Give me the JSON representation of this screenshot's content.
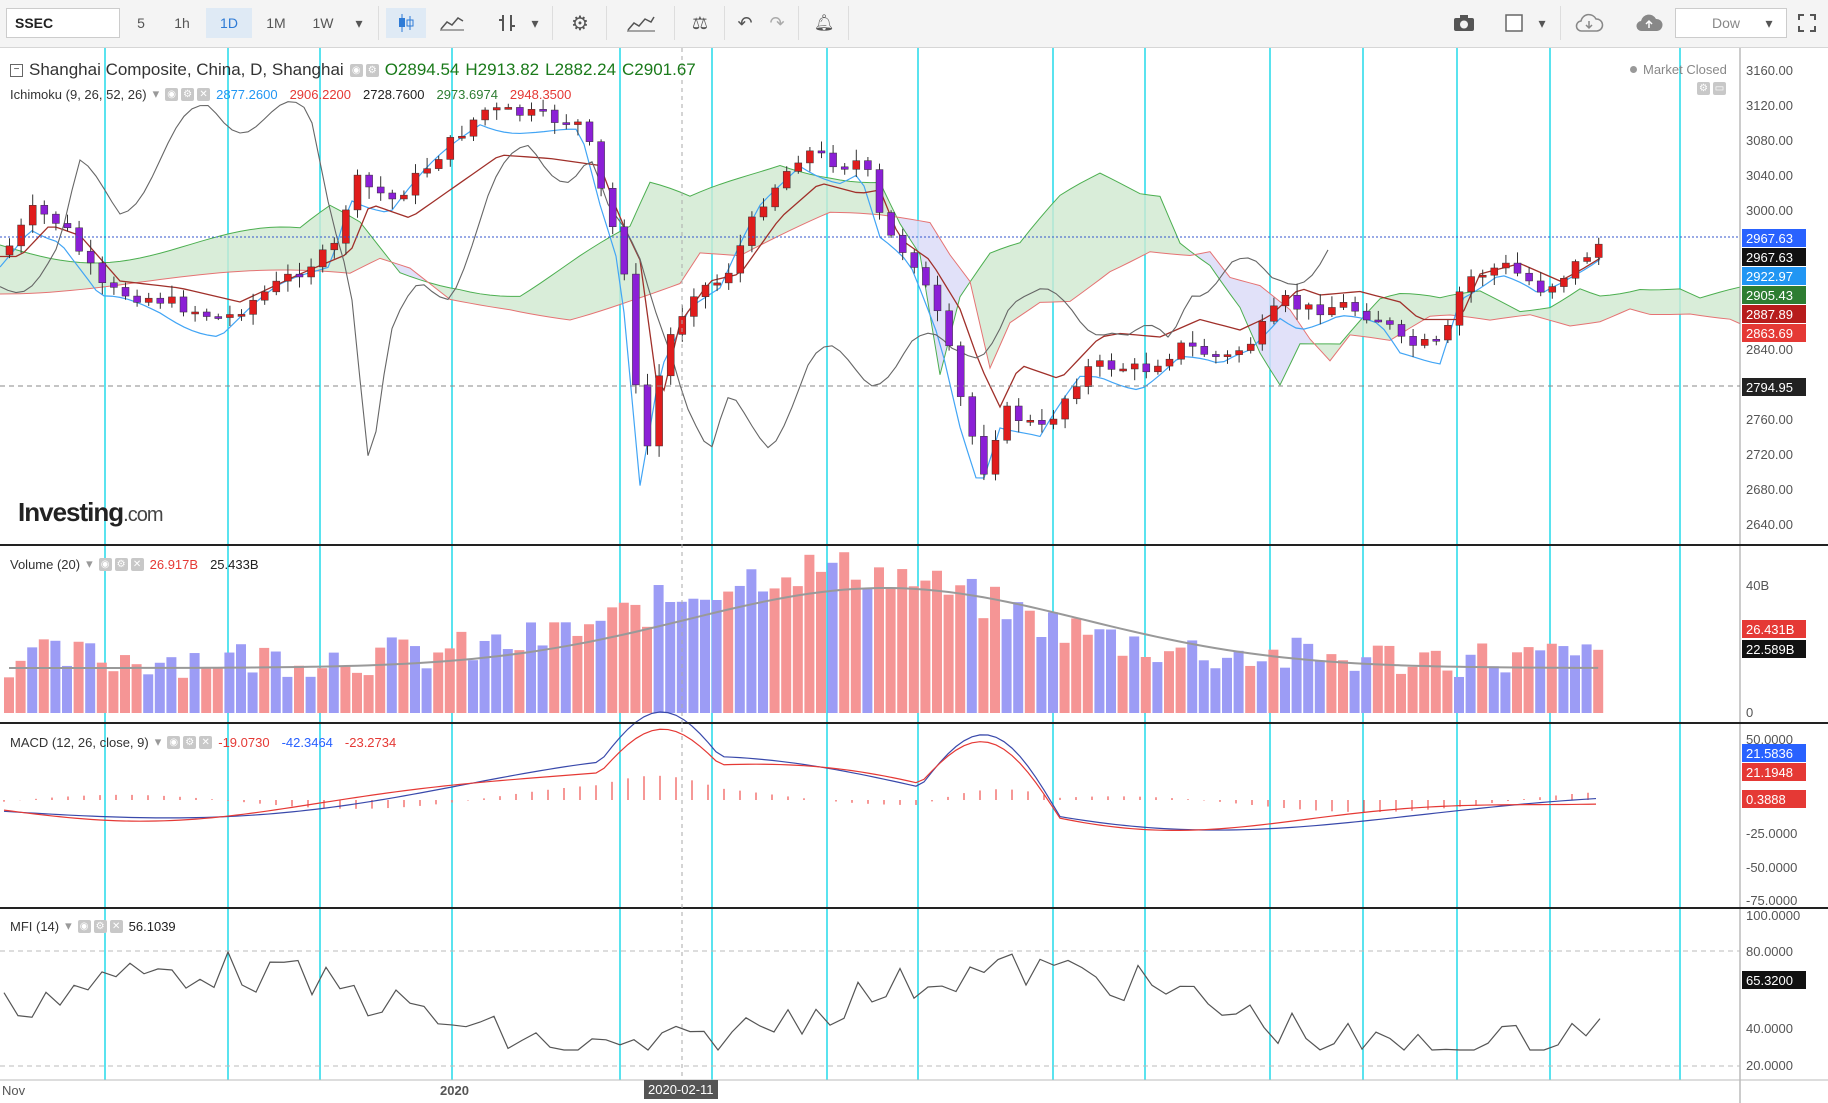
{
  "toolbar": {
    "symbol": "SSEC",
    "timeframes": [
      "5",
      "1h",
      "1D",
      "1M",
      "1W"
    ],
    "active_timeframe": "1D",
    "compare_label": "Dow"
  },
  "main": {
    "title": "Shanghai Composite, China, D, Shanghai",
    "ohlc": {
      "o": "O2894.54",
      "h": "H2913.82",
      "l": "L2882.24",
      "c": "C2901.67"
    },
    "status": "Market Closed",
    "ichimoku": {
      "label": "Ichimoku (9, 26, 52, 26)",
      "values": [
        "2877.2600",
        "2906.2200",
        "2728.7600",
        "2973.6974",
        "2948.3500"
      ],
      "colors": [
        "#2196f3",
        "#e53935",
        "#222222",
        "#2e7d32",
        "#e53935"
      ]
    },
    "price_axis": [
      "3160.00",
      "3120.00",
      "3080.00",
      "3040.00",
      "3000.00",
      "2840.00",
      "2760.00",
      "2720.00",
      "2680.00",
      "2640.00"
    ],
    "price_tags": [
      {
        "value": "2967.63",
        "bg": "#2962ff"
      },
      {
        "value": "2967.63",
        "bg": "#111111"
      },
      {
        "value": "2922.97",
        "bg": "#2196f3"
      },
      {
        "value": "2905.43",
        "bg": "#2e7d32"
      },
      {
        "value": "2887.89",
        "bg": "#b71c1c"
      },
      {
        "value": "2863.69",
        "bg": "#e53935"
      },
      {
        "value": "2794.95",
        "bg": "#222222"
      }
    ],
    "logo": "Investing",
    "logo_suffix": ".com"
  },
  "volume": {
    "label": "Volume (20)",
    "values": [
      "26.917B",
      "25.433B"
    ],
    "axis": [
      "40B",
      "0"
    ],
    "tags": [
      {
        "value": "26.431B",
        "bg": "#e53935"
      },
      {
        "value": "22.589B",
        "bg": "#111111"
      }
    ]
  },
  "macd": {
    "label": "MACD (12, 26, close, 9)",
    "values": [
      "-19.0730",
      "-42.3464",
      "-23.2734"
    ],
    "axis": [
      "50.0000",
      "-25.0000",
      "-50.0000",
      "-75.0000"
    ],
    "tags": [
      {
        "value": "21.5836",
        "bg": "#2962ff"
      },
      {
        "value": "21.1948",
        "bg": "#e53935"
      },
      {
        "value": "0.3888",
        "bg": "#e53935"
      }
    ]
  },
  "mfi": {
    "label": "MFI (14)",
    "value": "56.1039",
    "axis": [
      "100.0000",
      "80.0000",
      "40.0000",
      "20.0000"
    ],
    "tag": {
      "value": "65.3200",
      "bg": "#111111"
    }
  },
  "dates": {
    "left": "Nov",
    "year": "2020",
    "cursor": "2020-02-11"
  },
  "colors": {
    "up": "#e01c1c",
    "down": "#8b1fd6",
    "grid": "#00d4e6",
    "cloud_up": "#cfe8cf",
    "cloud_down": "#d9d9f7"
  }
}
